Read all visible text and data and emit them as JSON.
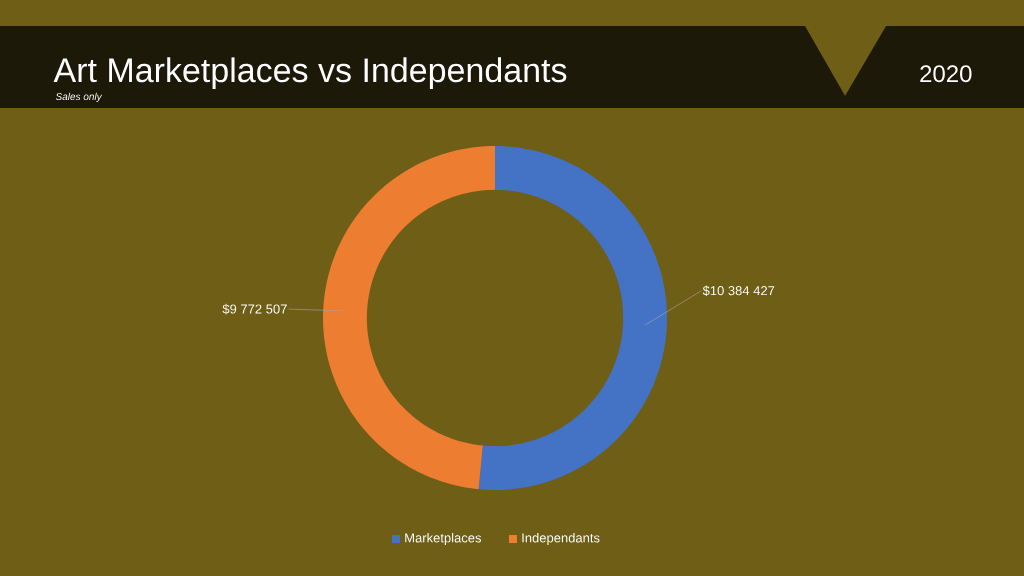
{
  "chart_data": {
    "type": "donut",
    "title": "Art Marketplaces vs Independants",
    "subtitle": "Sales only",
    "annotations": [
      "2020"
    ],
    "categories": [
      "Marketplaces",
      "Independants"
    ],
    "values": [
      10384427,
      9772507
    ],
    "value_labels": [
      "$10 384 427",
      "$9 772 507"
    ],
    "colors": [
      "#4472c4",
      "#ed7d31"
    ],
    "legend": "bottom"
  }
}
